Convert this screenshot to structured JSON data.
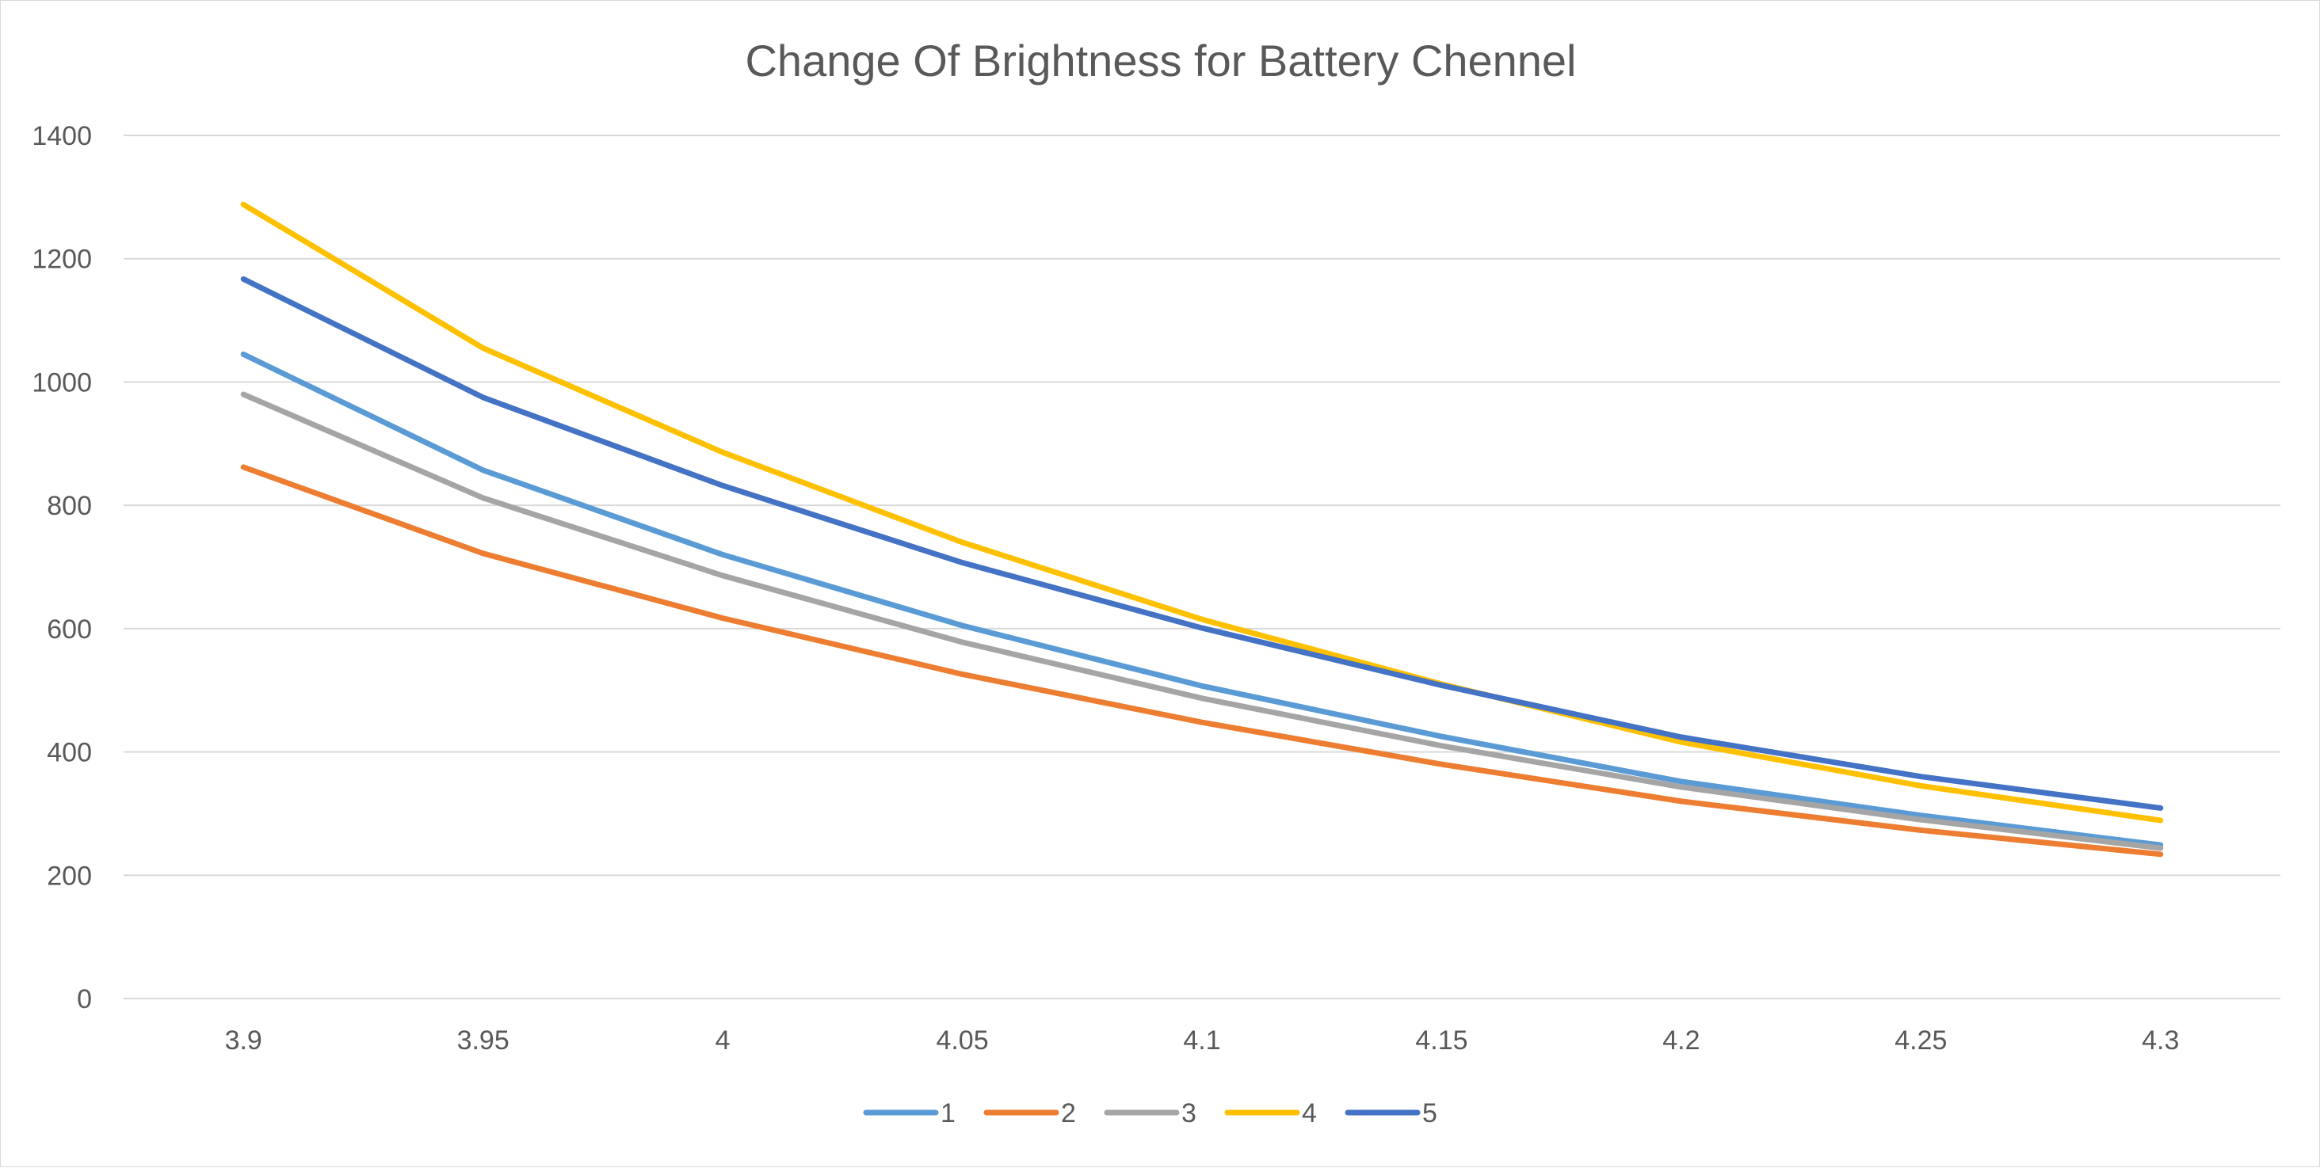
{
  "chart_data": {
    "type": "line",
    "title": "Change Of Brightness for Battery Chennel",
    "xlabel": "",
    "ylabel": "",
    "categories": [
      "3.9",
      "3.95",
      "4",
      "4.05",
      "4.1",
      "4.15",
      "4.2",
      "4.25",
      "4.3"
    ],
    "ylim": [
      0,
      1400
    ],
    "yticks": [
      0,
      200,
      400,
      600,
      800,
      1000,
      1200,
      1400
    ],
    "grid": true,
    "legend_position": "bottom",
    "series": [
      {
        "name": "1",
        "color": "#5b9bd5",
        "values": [
          1045,
          857,
          720,
          605,
          507,
          425,
          352,
          297,
          249
        ]
      },
      {
        "name": "2",
        "color": "#ed7d31",
        "values": [
          862,
          722,
          617,
          526,
          448,
          380,
          320,
          273,
          234
        ]
      },
      {
        "name": "3",
        "color": "#a5a5a5",
        "values": [
          980,
          812,
          686,
          578,
          487,
          410,
          343,
          290,
          244
        ]
      },
      {
        "name": "4",
        "color": "#ffc000",
        "values": [
          1288,
          1055,
          886,
          740,
          615,
          510,
          416,
          345,
          289
        ]
      },
      {
        "name": "5",
        "color": "#4472c4",
        "values": [
          1167,
          975,
          832,
          707,
          601,
          508,
          424,
          360,
          309
        ]
      }
    ]
  }
}
